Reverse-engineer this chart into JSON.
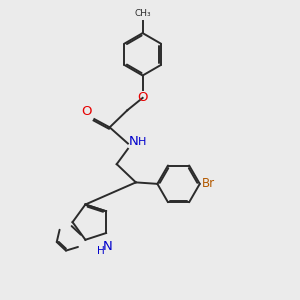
{
  "bg_color": "#ebebeb",
  "bond_color": "#2b2b2b",
  "O_color": "#e60000",
  "N_color": "#0000cc",
  "Br_color": "#b35900",
  "line_width": 1.4,
  "dbo": 0.055,
  "figsize": [
    3.0,
    3.0
  ],
  "dpi": 100,
  "xlim": [
    0,
    10
  ],
  "ylim": [
    0,
    10
  ]
}
